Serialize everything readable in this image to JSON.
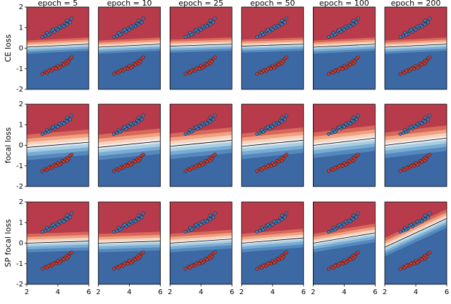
{
  "chart_data": {
    "type": "scatter",
    "column_titles": [
      "epoch = 5",
      "epoch = 10",
      "epoch = 25",
      "epoch = 50",
      "epoch = 100",
      "epoch = 200"
    ],
    "row_labels": [
      "CE loss",
      "focal loss",
      "SP focal loss"
    ],
    "xlim": [
      2,
      6
    ],
    "xticks": [
      2,
      4,
      6
    ],
    "ylim": [
      -2,
      2
    ],
    "yticks": [
      2,
      1,
      0,
      -1,
      -2
    ],
    "boundaries": [
      [
        [
          0.05,
          0.2
        ],
        [
          0.05,
          0.2
        ],
        [
          0.1,
          0.2
        ],
        [
          0.1,
          0.2
        ],
        [
          0.05,
          0.2
        ],
        [
          0.05,
          0.2
        ]
      ],
      [
        [
          -0.1,
          0.15
        ],
        [
          -0.1,
          0.2
        ],
        [
          -0.05,
          0.25
        ],
        [
          -0.05,
          0.25
        ],
        [
          0,
          0.35
        ],
        [
          0,
          0.35
        ]
      ],
      [
        [
          0,
          0.1
        ],
        [
          0,
          0.1
        ],
        [
          0,
          0.2
        ],
        [
          0,
          0.25
        ],
        [
          0,
          0.5
        ],
        [
          -0.2,
          1.2
        ]
      ]
    ],
    "series": [
      {
        "color": "#3a7ebf",
        "x": [
          3.0,
          3.2,
          3.3,
          3.5,
          3.6,
          3.8,
          3.9,
          4.0,
          4.2,
          4.3,
          4.4,
          4.5,
          4.6,
          4.7,
          4.8,
          4.9,
          3.4,
          4.1,
          4.6,
          3.7
        ],
        "y": [
          0.55,
          0.6,
          0.75,
          0.7,
          0.85,
          0.8,
          0.95,
          0.9,
          1.0,
          1.1,
          1.05,
          1.2,
          1.15,
          1.3,
          1.25,
          1.45,
          0.65,
          1.05,
          1.35,
          0.9
        ]
      },
      {
        "color": "#d63a2e",
        "x": [
          3.0,
          3.2,
          3.3,
          3.5,
          3.6,
          3.8,
          3.9,
          4.0,
          4.2,
          4.3,
          4.4,
          4.5,
          4.6,
          4.7,
          4.8,
          4.9,
          3.4,
          4.1,
          4.6,
          3.7
        ],
        "y": [
          -1.25,
          -1.15,
          -1.2,
          -1.05,
          -1.1,
          -0.95,
          -1.0,
          -0.85,
          -0.9,
          -0.75,
          -0.8,
          -0.7,
          -0.6,
          -0.65,
          -0.5,
          -0.45,
          -1.1,
          -0.95,
          -0.75,
          -1.0
        ]
      }
    ]
  }
}
